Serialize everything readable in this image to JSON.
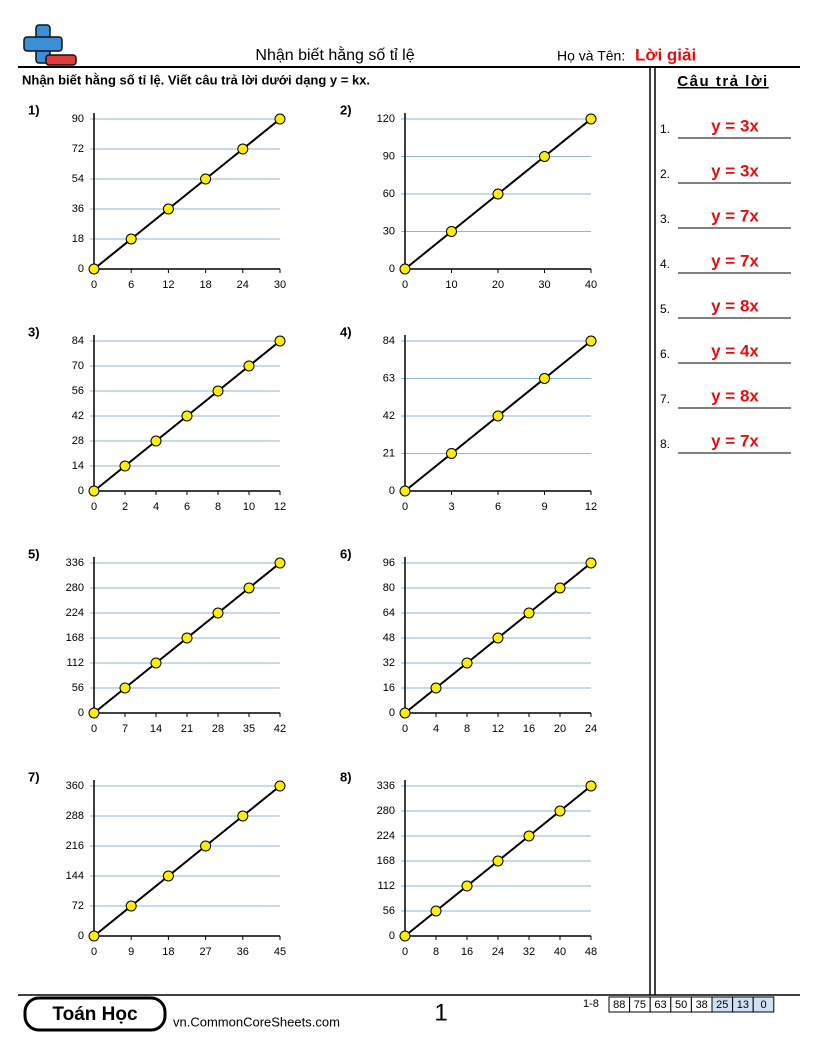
{
  "header": {
    "title": "Nhận biết hằng số tỉ lệ",
    "name_label": "Họ và Tên:",
    "name_value": "Lời giải"
  },
  "instructions": "Nhận biết hằng số tỉ lệ. Viết câu trả lời dưới dạng y = kx.",
  "problems": [
    {
      "label": "1)",
      "xlim": [
        0,
        30
      ],
      "ylim": [
        0,
        90
      ],
      "xticks": [
        0,
        6,
        12,
        18,
        24,
        30
      ],
      "yticks": [
        0,
        18,
        36,
        54,
        72,
        90
      ],
      "points": {
        "x": [
          0,
          6,
          12,
          18,
          24,
          30
        ],
        "y": [
          0,
          18,
          36,
          54,
          72,
          90
        ]
      }
    },
    {
      "label": "2)",
      "xlim": [
        0,
        40
      ],
      "ylim": [
        0,
        120
      ],
      "xticks": [
        0,
        10,
        20,
        30,
        40
      ],
      "yticks": [
        0,
        30,
        60,
        90,
        120
      ],
      "points": {
        "x": [
          0,
          10,
          20,
          30,
          40
        ],
        "y": [
          0,
          30,
          60,
          90,
          120
        ]
      }
    },
    {
      "label": "3)",
      "xlim": [
        0,
        12
      ],
      "ylim": [
        0,
        84
      ],
      "xticks": [
        0,
        2,
        4,
        6,
        8,
        10,
        12
      ],
      "yticks": [
        0,
        14,
        28,
        42,
        56,
        70,
        84
      ],
      "points": {
        "x": [
          0,
          2,
          4,
          6,
          8,
          10,
          12
        ],
        "y": [
          0,
          14,
          28,
          42,
          56,
          70,
          84
        ]
      }
    },
    {
      "label": "4)",
      "xlim": [
        0,
        12
      ],
      "ylim": [
        0,
        84
      ],
      "xticks": [
        0,
        3,
        6,
        9,
        12
      ],
      "yticks": [
        0,
        21,
        42,
        63,
        84
      ],
      "points": {
        "x": [
          0,
          3,
          6,
          9,
          12
        ],
        "y": [
          0,
          21,
          42,
          63,
          84
        ]
      }
    },
    {
      "label": "5)",
      "xlim": [
        0,
        42
      ],
      "ylim": [
        0,
        336
      ],
      "xticks": [
        0,
        7,
        14,
        21,
        28,
        35,
        42
      ],
      "yticks": [
        0,
        56,
        112,
        168,
        224,
        280,
        336
      ],
      "points": {
        "x": [
          0,
          7,
          14,
          21,
          28,
          35,
          42
        ],
        "y": [
          0,
          56,
          112,
          168,
          224,
          280,
          336
        ]
      }
    },
    {
      "label": "6)",
      "xlim": [
        0,
        24
      ],
      "ylim": [
        0,
        96
      ],
      "xticks": [
        0,
        4,
        8,
        12,
        16,
        20,
        24
      ],
      "yticks": [
        0,
        16,
        32,
        48,
        64,
        80,
        96
      ],
      "points": {
        "x": [
          0,
          4,
          8,
          12,
          16,
          20,
          24
        ],
        "y": [
          0,
          16,
          32,
          48,
          64,
          80,
          96
        ]
      }
    },
    {
      "label": "7)",
      "xlim": [
        0,
        45
      ],
      "ylim": [
        0,
        360
      ],
      "xticks": [
        0,
        9,
        18,
        27,
        36,
        45
      ],
      "yticks": [
        0,
        72,
        144,
        216,
        288,
        360
      ],
      "points": {
        "x": [
          0,
          9,
          18,
          27,
          36,
          45
        ],
        "y": [
          0,
          72,
          144,
          216,
          288,
          360
        ]
      }
    },
    {
      "label": "8)",
      "xlim": [
        0,
        48
      ],
      "ylim": [
        0,
        336
      ],
      "xticks": [
        0,
        8,
        16,
        24,
        32,
        40,
        48
      ],
      "yticks": [
        0,
        56,
        112,
        168,
        224,
        280,
        336
      ],
      "points": {
        "x": [
          0,
          8,
          16,
          24,
          32,
          40,
          48
        ],
        "y": [
          0,
          56,
          112,
          168,
          224,
          280,
          336
        ]
      }
    }
  ],
  "answers": {
    "title": "Câu trả lời",
    "items": [
      {
        "number": "1.",
        "text": "y = 3x"
      },
      {
        "number": "2.",
        "text": "y = 3x"
      },
      {
        "number": "3.",
        "text": "y = 7x"
      },
      {
        "number": "4.",
        "text": "y = 7x"
      },
      {
        "number": "5.",
        "text": "y = 8x"
      },
      {
        "number": "6.",
        "text": "y = 4x"
      },
      {
        "number": "7.",
        "text": "y = 8x"
      },
      {
        "number": "8.",
        "text": "y = 7x"
      }
    ]
  },
  "footer": {
    "brand": "Toán Học",
    "url": "vn.CommonCoreSheets.com",
    "page": "1",
    "score_range": "1-8",
    "scores": [
      "88",
      "75",
      "63",
      "50",
      "38",
      "25",
      "13",
      "0"
    ]
  }
}
